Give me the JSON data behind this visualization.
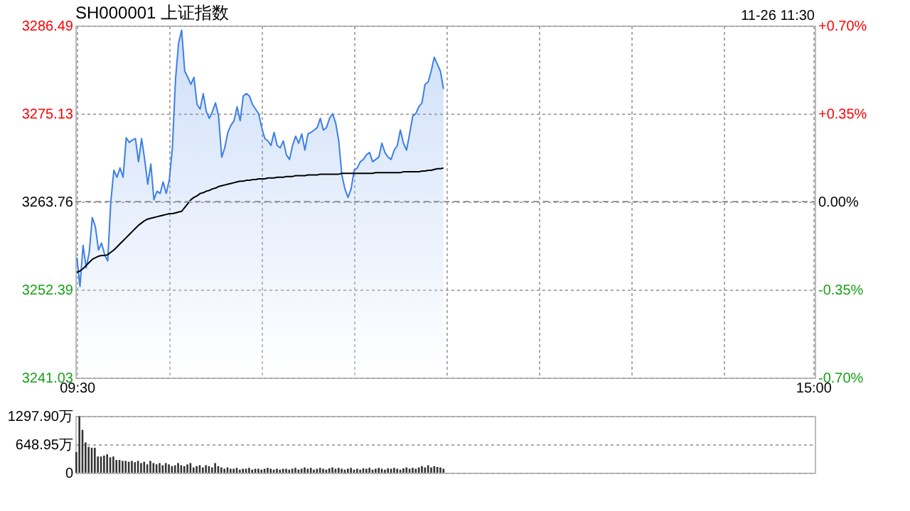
{
  "chart_data": [
    {
      "type": "line",
      "title": "SH000001 上证指数",
      "annotations": [
        "11-26 11:30"
      ],
      "grid": true,
      "categories": [
        "09:30",
        null,
        null,
        null,
        null,
        null,
        null,
        null,
        null,
        null,
        null,
        null,
        null,
        null,
        null,
        null,
        null,
        null,
        null,
        null,
        null,
        null,
        null,
        null,
        null,
        null,
        null,
        null,
        null,
        null,
        null,
        null,
        null,
        null,
        null,
        null,
        null,
        null,
        null,
        null,
        null,
        null,
        null,
        null,
        null,
        null,
        null,
        null,
        null,
        null,
        null,
        null,
        null,
        null,
        null,
        null,
        null,
        null,
        null,
        null,
        null,
        null,
        null,
        null,
        null,
        null,
        null,
        null,
        null,
        null,
        null,
        null,
        null,
        null,
        null,
        null,
        null,
        null,
        null,
        null,
        null,
        null,
        null,
        null,
        null,
        null,
        null,
        null,
        null,
        null,
        null,
        null,
        null,
        null,
        null,
        null,
        null,
        null,
        null,
        null,
        null,
        null,
        null,
        null,
        null,
        null,
        null,
        null,
        null,
        null,
        null,
        null,
        null,
        null,
        null,
        null,
        null,
        null,
        null,
        null,
        null,
        null,
        null,
        null,
        null,
        null,
        null,
        null,
        null,
        null,
        null,
        null,
        null,
        null,
        null,
        null,
        null,
        null,
        null,
        null,
        null,
        null,
        null,
        null,
        null,
        null,
        null,
        null,
        null,
        null,
        null,
        null,
        null,
        null,
        null,
        null,
        null,
        null,
        null,
        null,
        null,
        null,
        null,
        null,
        null,
        null,
        null,
        null,
        null,
        null,
        null,
        null,
        null,
        null,
        null,
        null,
        null,
        null,
        null,
        null,
        null,
        null,
        null,
        null,
        null,
        null,
        null,
        null,
        null,
        null,
        null,
        null,
        null,
        null,
        null,
        null,
        null,
        null,
        null,
        null,
        null,
        null,
        null,
        null,
        null,
        null,
        null,
        null,
        null,
        null,
        null,
        null,
        null,
        null,
        null,
        null,
        null,
        null,
        null,
        null,
        null,
        null,
        null,
        null,
        null,
        null,
        null,
        null,
        null,
        null,
        null,
        null,
        null,
        null,
        null,
        null,
        null,
        null,
        null,
        "15:00"
      ],
      "ylim": [
        3241.03,
        3286.49
      ],
      "yticks": [
        3241.03,
        3252.39,
        3263.76,
        3275.13,
        3286.49
      ],
      "y2lim": [
        -0.7,
        0.7
      ],
      "y2ticks": [
        {
          "value": -0.7,
          "label": "-0.70%"
        },
        {
          "value": -0.35,
          "label": "-0.35%"
        },
        {
          "value": 0,
          "label": "0.00%"
        },
        {
          "value": 0.35,
          "label": "+0.35%"
        },
        {
          "value": 0.7,
          "label": "+0.70%"
        }
      ],
      "ref_lines": [
        {
          "axis": "y2",
          "value": 0,
          "color": "#999999",
          "line_style": "dashed"
        }
      ],
      "series": [
        {
          "type": "area",
          "color": "#3d7fe6",
          "values": [
            3256.5,
            3252.8,
            3258.1,
            3255.2,
            3257.2,
            3261.7,
            3260.5,
            3257.5,
            3258.4,
            3256.9,
            3256.1,
            3263.7,
            3267.8,
            3266.9,
            3268.1,
            3266.9,
            3272.0,
            3271.4,
            3271.7,
            3271.9,
            3268.9,
            3271.9,
            3269.2,
            3266.0,
            3268.6,
            3264.0,
            3265.1,
            3264.8,
            3266.3,
            3264.8,
            3266.6,
            3270.7,
            3279.5,
            3284.2,
            3285.9,
            3280.6,
            3279.8,
            3278.9,
            3279.8,
            3276.3,
            3275.7,
            3277.7,
            3275.4,
            3274.5,
            3275.4,
            3276.5,
            3274.8,
            3269.5,
            3270.7,
            3272.7,
            3273.6,
            3274.2,
            3276.0,
            3274.2,
            3277.4,
            3277.7,
            3277.4,
            3276.3,
            3275.7,
            3275.1,
            3273.3,
            3271.9,
            3271.6,
            3271.0,
            3272.7,
            3271.0,
            3270.7,
            3271.6,
            3269.8,
            3269.2,
            3271.0,
            3272.2,
            3271.3,
            3272.5,
            3270.4,
            3272.5,
            3272.7,
            3273.0,
            3273.3,
            3274.5,
            3273.0,
            3273.3,
            3274.5,
            3275.1,
            3273.9,
            3271.6,
            3267.2,
            3265.4,
            3264.3,
            3265.4,
            3267.8,
            3268.1,
            3268.9,
            3269.2,
            3269.8,
            3270.1,
            3268.9,
            3269.2,
            3269.5,
            3271.3,
            3270.1,
            3269.5,
            3269.2,
            3270.4,
            3271.0,
            3273.0,
            3271.3,
            3270.4,
            3272.5,
            3274.8,
            3275.1,
            3276.0,
            3276.5,
            3278.9,
            3279.2,
            3280.6,
            3282.4,
            3281.5,
            3280.6,
            3278.3,
            null,
            null,
            null,
            null,
            null,
            null,
            null,
            null,
            null,
            null,
            null,
            null,
            null,
            null,
            null,
            null,
            null,
            null,
            null,
            null,
            null,
            null,
            null,
            null,
            null,
            null,
            null,
            null,
            null,
            null,
            null,
            null,
            null,
            null,
            null,
            null,
            null,
            null,
            null,
            null,
            null,
            null,
            null,
            null,
            null,
            null,
            null,
            null,
            null,
            null,
            null,
            null,
            null,
            null,
            null,
            null,
            null,
            null,
            null,
            null,
            null,
            null,
            null,
            null,
            null,
            null,
            null,
            null,
            null,
            null,
            null,
            null,
            null,
            null,
            null,
            null,
            null,
            null,
            null,
            null,
            null,
            null,
            null,
            null,
            null,
            null,
            null,
            null,
            null,
            null,
            null,
            null,
            null,
            null,
            null,
            null,
            null,
            null,
            null,
            null,
            null,
            null,
            null,
            null,
            null,
            null,
            null,
            null,
            null,
            null,
            null,
            null,
            null,
            null,
            null,
            null,
            null,
            null,
            null,
            null
          ]
        },
        {
          "type": "line",
          "color": "#000000",
          "values": [
            3254.6,
            3254.8,
            3255.1,
            3255.5,
            3255.9,
            3256.3,
            3256.5,
            3256.7,
            3256.8,
            3256.8,
            3256.9,
            3257.2,
            3257.5,
            3257.9,
            3258.3,
            3258.7,
            3259.1,
            3259.5,
            3259.9,
            3260.3,
            3260.7,
            3261.0,
            3261.3,
            3261.5,
            3261.6,
            3261.7,
            3261.8,
            3261.9,
            3262.0,
            3262.1,
            3262.2,
            3262.2,
            3262.3,
            3262.4,
            3262.5,
            3263.0,
            3263.5,
            3264.0,
            3264.3,
            3264.5,
            3264.8,
            3264.9,
            3265.1,
            3265.2,
            3265.4,
            3265.5,
            3265.7,
            3265.8,
            3265.9,
            3266.0,
            3266.1,
            3266.2,
            3266.3,
            3266.4,
            3266.4,
            3266.5,
            3266.5,
            3266.6,
            3266.6,
            3266.7,
            3266.7,
            3266.7,
            3266.8,
            3266.8,
            3266.8,
            3266.9,
            3266.9,
            3266.9,
            3267.0,
            3267.0,
            3267.0,
            3267.1,
            3267.1,
            3267.1,
            3267.1,
            3267.2,
            3267.2,
            3267.2,
            3267.2,
            3267.3,
            3267.3,
            3267.3,
            3267.3,
            3267.3,
            3267.3,
            3267.3,
            3267.4,
            3267.4,
            3267.4,
            3267.4,
            3267.4,
            3267.4,
            3267.4,
            3267.4,
            3267.4,
            3267.4,
            3267.4,
            3267.5,
            3267.5,
            3267.5,
            3267.5,
            3267.5,
            3267.5,
            3267.5,
            3267.5,
            3267.5,
            3267.6,
            3267.6,
            3267.6,
            3267.6,
            3267.6,
            3267.6,
            3267.7,
            3267.7,
            3267.8,
            3267.8,
            3267.9,
            3268.0,
            3268.0,
            3268.1,
            null,
            null,
            null,
            null,
            null,
            null,
            null,
            null,
            null,
            null,
            null,
            null,
            null,
            null,
            null,
            null,
            null,
            null,
            null,
            null,
            null,
            null,
            null,
            null,
            null,
            null,
            null,
            null,
            null,
            null,
            null,
            null,
            null,
            null,
            null,
            null,
            null,
            null,
            null,
            null,
            null,
            null,
            null,
            null,
            null,
            null,
            null,
            null,
            null,
            null,
            null,
            null,
            null,
            null,
            null,
            null,
            null,
            null,
            null,
            null,
            null,
            null,
            null,
            null,
            null,
            null,
            null,
            null,
            null,
            null,
            null,
            null,
            null,
            null,
            null,
            null,
            null,
            null,
            null,
            null,
            null,
            null,
            null,
            null,
            null,
            null,
            null,
            null,
            null,
            null,
            null,
            null,
            null,
            null,
            null,
            null,
            null,
            null,
            null,
            null,
            null,
            null,
            null,
            null,
            null,
            null,
            null,
            null,
            null,
            null,
            null,
            null,
            null,
            null,
            null,
            null,
            null,
            null,
            null,
            null
          ]
        }
      ]
    },
    {
      "type": "bar",
      "color": "#333333",
      "grid": "y",
      "tick_labels": "y",
      "ylim": [
        0,
        1297.9
      ],
      "yticks": [
        0,
        {
          "value": 648.95,
          "label": "648.95万"
        },
        {
          "value": 1297.9,
          "label": "1297.90万"
        }
      ],
      "categories": [
        null,
        null,
        null,
        null,
        null,
        null,
        null,
        null,
        null,
        null,
        null,
        null,
        null,
        null,
        null,
        null,
        null,
        null,
        null,
        null,
        null,
        null,
        null,
        null,
        null,
        null,
        null,
        null,
        null,
        null,
        null,
        null,
        null,
        null,
        null,
        null,
        null,
        null,
        null,
        null,
        null,
        null,
        null,
        null,
        null,
        null,
        null,
        null,
        null,
        null,
        null,
        null,
        null,
        null,
        null,
        null,
        null,
        null,
        null,
        null,
        null,
        null,
        null,
        null,
        null,
        null,
        null,
        null,
        null,
        null,
        null,
        null,
        null,
        null,
        null,
        null,
        null,
        null,
        null,
        null,
        null,
        null,
        null,
        null,
        null,
        null,
        null,
        null,
        null,
        null,
        null,
        null,
        null,
        null,
        null,
        null,
        null,
        null,
        null,
        null,
        null,
        null,
        null,
        null,
        null,
        null,
        null,
        null,
        null,
        null,
        null,
        null,
        null,
        null,
        null,
        null,
        null,
        null,
        null,
        null,
        null,
        null,
        null,
        null,
        null,
        null,
        null,
        null,
        null,
        null,
        null,
        null,
        null,
        null,
        null,
        null,
        null,
        null,
        null,
        null,
        null,
        null,
        null,
        null,
        null,
        null,
        null,
        null,
        null,
        null,
        null,
        null,
        null,
        null,
        null,
        null,
        null,
        null,
        null,
        null,
        null,
        null,
        null,
        null,
        null,
        null,
        null,
        null,
        null,
        null,
        null,
        null,
        null,
        null,
        null,
        null,
        null,
        null,
        null,
        null,
        null,
        null,
        null,
        null,
        null,
        null,
        null,
        null,
        null,
        null,
        null,
        null,
        null,
        null,
        null,
        null,
        null,
        null,
        null,
        null,
        null,
        null,
        null,
        null,
        null,
        null,
        null,
        null,
        null,
        null,
        null,
        null,
        null,
        null,
        null,
        null,
        null,
        null,
        null,
        null,
        null,
        null,
        null,
        null,
        null,
        null,
        null,
        null,
        null,
        null,
        null,
        null,
        null,
        null,
        null,
        null,
        null,
        null,
        null,
        null
      ],
      "values": [
        470,
        1290,
        980,
        690,
        590,
        570,
        570,
        370,
        370,
        390,
        420,
        350,
        370,
        290,
        290,
        270,
        270,
        250,
        270,
        240,
        270,
        220,
        250,
        190,
        270,
        220,
        190,
        220,
        170,
        220,
        190,
        150,
        170,
        220,
        170,
        150,
        190,
        220,
        120,
        150,
        170,
        120,
        170,
        150,
        120,
        220,
        150,
        120,
        90,
        120,
        90,
        90,
        110,
        70,
        90,
        90,
        110,
        70,
        90,
        90,
        70,
        90,
        110,
        90,
        70,
        90,
        70,
        90,
        90,
        70,
        90,
        110,
        70,
        90,
        120,
        90,
        110,
        70,
        90,
        110,
        90,
        70,
        100,
        120,
        90,
        110,
        90,
        70,
        90,
        110,
        70,
        90,
        70,
        100,
        90,
        110,
        70,
        90,
        110,
        90,
        70,
        100,
        90,
        110,
        90,
        70,
        100,
        120,
        90,
        110,
        90,
        120,
        150,
        120,
        170,
        120,
        150,
        130,
        120,
        90,
        null,
        null,
        null,
        null,
        null,
        null,
        null,
        null,
        null,
        null,
        null,
        null,
        null,
        null,
        null,
        null,
        null,
        null,
        null,
        null,
        null,
        null,
        null,
        null,
        null,
        null,
        null,
        null,
        null,
        null,
        null,
        null,
        null,
        null,
        null,
        null,
        null,
        null,
        null,
        null,
        null,
        null,
        null,
        null,
        null,
        null,
        null,
        null,
        null,
        null,
        null,
        null,
        null,
        null,
        null,
        null,
        null,
        null,
        null,
        null,
        null,
        null,
        null,
        null,
        null,
        null,
        null,
        null,
        null,
        null,
        null,
        null,
        null,
        null,
        null,
        null,
        null,
        null,
        null,
        null,
        null,
        null,
        null,
        null,
        null,
        null,
        null,
        null,
        null,
        null,
        null,
        null,
        null,
        null,
        null,
        null,
        null,
        null,
        null,
        null,
        null,
        null,
        null,
        null,
        null,
        null,
        null,
        null,
        null,
        null,
        null,
        null,
        null,
        null,
        null,
        null,
        null,
        null,
        null,
        null
      ]
    }
  ]
}
